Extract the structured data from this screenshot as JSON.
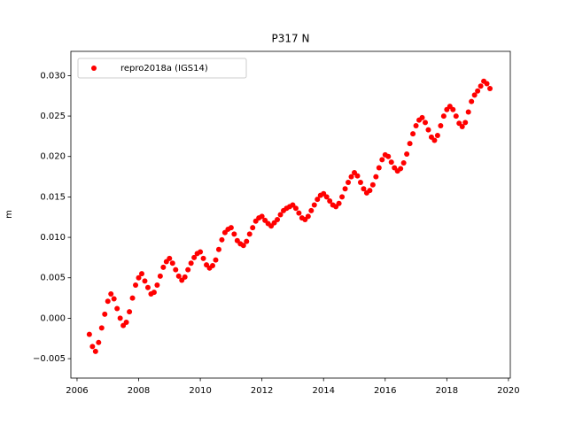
{
  "chart_data": {
    "type": "scatter",
    "title": "P317 N",
    "y_label": "m",
    "x": [
      2006.4,
      2006.5,
      2006.6,
      2006.7,
      2006.8,
      2006.9,
      2007.0,
      2007.1,
      2007.2,
      2007.3,
      2007.4,
      2007.5,
      2007.6,
      2007.7,
      2007.8,
      2007.9,
      2008.0,
      2008.1,
      2008.2,
      2008.3,
      2008.4,
      2008.5,
      2008.6,
      2008.7,
      2008.8,
      2008.9,
      2009.0,
      2009.1,
      2009.2,
      2009.3,
      2009.4,
      2009.5,
      2009.6,
      2009.7,
      2009.8,
      2009.9,
      2010.0,
      2010.1,
      2010.2,
      2010.3,
      2010.4,
      2010.5,
      2010.6,
      2010.7,
      2010.8,
      2010.9,
      2011.0,
      2011.1,
      2011.2,
      2011.3,
      2011.4,
      2011.5,
      2011.6,
      2011.7,
      2011.8,
      2011.9,
      2012.0,
      2012.1,
      2012.2,
      2012.3,
      2012.4,
      2012.5,
      2012.6,
      2012.7,
      2012.8,
      2012.9,
      2013.0,
      2013.1,
      2013.2,
      2013.3,
      2013.4,
      2013.5,
      2013.6,
      2013.7,
      2013.8,
      2013.9,
      2014.0,
      2014.1,
      2014.2,
      2014.3,
      2014.4,
      2014.5,
      2014.6,
      2014.7,
      2014.8,
      2014.9,
      2015.0,
      2015.1,
      2015.2,
      2015.3,
      2015.4,
      2015.5,
      2015.6,
      2015.7,
      2015.8,
      2015.9,
      2016.0,
      2016.1,
      2016.2,
      2016.3,
      2016.4,
      2016.5,
      2016.6,
      2016.7,
      2016.8,
      2016.9,
      2017.0,
      2017.1,
      2017.2,
      2017.3,
      2017.4,
      2017.5,
      2017.6,
      2017.7,
      2017.8,
      2017.9,
      2018.0,
      2018.1,
      2018.2,
      2018.3,
      2018.4,
      2018.5,
      2018.6,
      2018.7,
      2018.8,
      2018.9,
      2019.0,
      2019.1,
      2019.2,
      2019.3,
      2019.4
    ],
    "series": [
      {
        "name": "repro2018a (IGS14)",
        "color": "#ff0000",
        "values": [
          -0.002,
          -0.0035,
          -0.0041,
          -0.003,
          -0.0012,
          0.0005,
          0.0021,
          0.003,
          0.0024,
          0.0012,
          0.0,
          -0.0009,
          -0.0005,
          0.0008,
          0.0025,
          0.0041,
          0.005,
          0.0055,
          0.0046,
          0.0038,
          0.003,
          0.0032,
          0.0041,
          0.0052,
          0.0063,
          0.007,
          0.0074,
          0.0068,
          0.006,
          0.0052,
          0.0047,
          0.0051,
          0.006,
          0.0068,
          0.0075,
          0.008,
          0.0082,
          0.0074,
          0.0066,
          0.0062,
          0.0065,
          0.0072,
          0.0085,
          0.0097,
          0.0106,
          0.011,
          0.0112,
          0.0104,
          0.0096,
          0.0092,
          0.009,
          0.0095,
          0.0104,
          0.0112,
          0.012,
          0.0124,
          0.0126,
          0.0121,
          0.0117,
          0.0114,
          0.0118,
          0.0122,
          0.0128,
          0.0133,
          0.0136,
          0.0138,
          0.014,
          0.0136,
          0.013,
          0.0124,
          0.0122,
          0.0126,
          0.0133,
          0.014,
          0.0147,
          0.0152,
          0.0154,
          0.015,
          0.0145,
          0.014,
          0.0138,
          0.0142,
          0.015,
          0.016,
          0.0168,
          0.0175,
          0.018,
          0.0176,
          0.0168,
          0.016,
          0.0155,
          0.0158,
          0.0165,
          0.0175,
          0.0186,
          0.0196,
          0.0202,
          0.02,
          0.0193,
          0.0186,
          0.0182,
          0.0185,
          0.0192,
          0.0203,
          0.0216,
          0.0228,
          0.0238,
          0.0245,
          0.0248,
          0.0242,
          0.0233,
          0.0224,
          0.022,
          0.0226,
          0.0238,
          0.025,
          0.0258,
          0.0262,
          0.0258,
          0.025,
          0.0241,
          0.0237,
          0.0242,
          0.0255,
          0.0268,
          0.0276,
          0.0281,
          0.0287,
          0.0293,
          0.029,
          0.0284
        ]
      }
    ],
    "xlim": [
      2005.8,
      2020.06
    ],
    "ylim": [
      -0.0074,
      0.033
    ],
    "xticks": [
      2006,
      2008,
      2010,
      2012,
      2014,
      2016,
      2018,
      2020
    ],
    "yticks": [
      {
        "value": -0.005,
        "label": "−0.005"
      },
      {
        "value": 0,
        "label": "0.000"
      },
      {
        "value": 0.005,
        "label": "0.005"
      },
      {
        "value": 0.01,
        "label": "0.010"
      },
      {
        "value": 0.015,
        "label": "0.015"
      },
      {
        "value": 0.02,
        "label": "0.020"
      },
      {
        "value": 0.025,
        "label": "0.025"
      },
      {
        "value": 0.03,
        "label": "0.030"
      }
    ],
    "legend": "upper left",
    "grid": false
  }
}
